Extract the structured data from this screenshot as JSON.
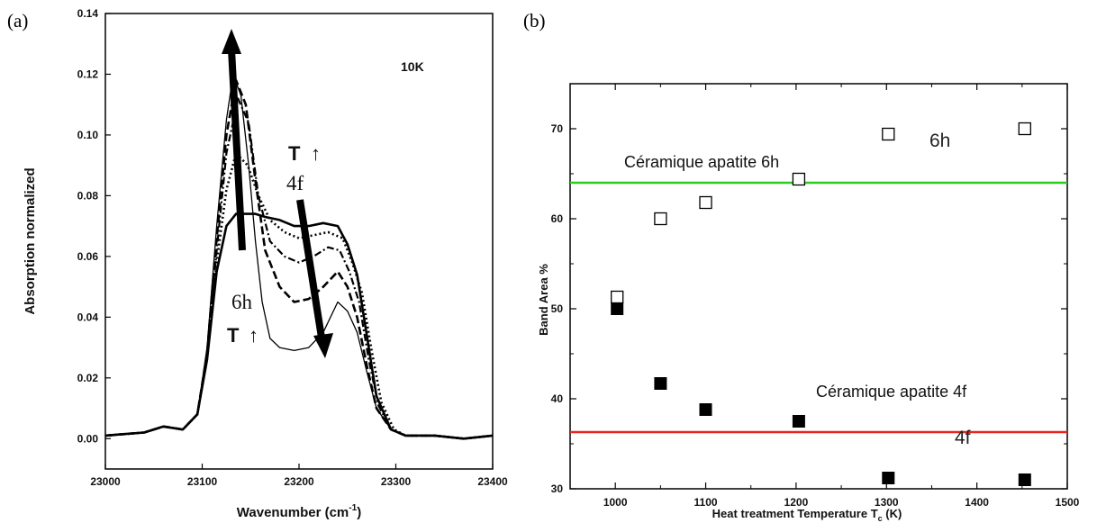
{
  "chart_data": [
    {
      "panel_label": "(a)",
      "type": "line",
      "title": "",
      "xlabel": "Wavenumber (cm",
      "xlabel_superscript": "-1",
      "xlabel_close": ")",
      "ylabel": "Absorption normalized",
      "xlim": [
        23000,
        23400
      ],
      "ylim": [
        -0.01,
        0.14
      ],
      "x_ticks": [
        {
          "value": 23000,
          "label": "23000"
        },
        {
          "value": 23100,
          "label": "23100"
        },
        {
          "value": 23200,
          "label": "23200"
        },
        {
          "value": 23300,
          "label": "23300"
        },
        {
          "value": 23400,
          "label": "23400"
        }
      ],
      "y_ticks": [
        {
          "value": 0.0,
          "label": "0.00"
        },
        {
          "value": 0.02,
          "label": "0.02"
        },
        {
          "value": 0.04,
          "label": "0.04"
        },
        {
          "value": 0.06,
          "label": "0.06"
        },
        {
          "value": 0.08,
          "label": "0.08"
        },
        {
          "value": 0.1,
          "label": "0.10"
        },
        {
          "value": 0.12,
          "label": "0.12"
        },
        {
          "value": 0.14,
          "label": "0.14"
        }
      ],
      "annotations": {
        "temperature": "10K",
        "t_arrow_upper": "T",
        "label_4f": "4f",
        "label_6h": "6h",
        "t_arrow_lower": "T",
        "up_arrow_glyph": "↑"
      },
      "series": [
        {
          "style": "solid-thin",
          "x": [
            23000,
            23040,
            23060,
            23080,
            23095,
            23105,
            23115,
            23125,
            23132,
            23140,
            23148,
            23155,
            23162,
            23170,
            23180,
            23195,
            23210,
            23225,
            23240,
            23250,
            23260,
            23270,
            23280,
            23295,
            23310,
            23340,
            23370,
            23400
          ],
          "y": [
            0.001,
            0.002,
            0.004,
            0.003,
            0.008,
            0.03,
            0.07,
            0.105,
            0.12,
            0.113,
            0.09,
            0.065,
            0.045,
            0.033,
            0.03,
            0.029,
            0.03,
            0.035,
            0.045,
            0.042,
            0.035,
            0.022,
            0.01,
            0.003,
            0.001,
            0.001,
            0.0,
            0.001
          ]
        },
        {
          "style": "dashed",
          "x": [
            23000,
            23040,
            23060,
            23080,
            23095,
            23105,
            23115,
            23125,
            23135,
            23145,
            23155,
            23165,
            23180,
            23195,
            23210,
            23225,
            23240,
            23250,
            23260,
            23270,
            23280,
            23295,
            23310,
            23340,
            23370,
            23400
          ],
          "y": [
            0.001,
            0.002,
            0.004,
            0.003,
            0.008,
            0.028,
            0.066,
            0.1,
            0.118,
            0.11,
            0.085,
            0.062,
            0.05,
            0.045,
            0.046,
            0.05,
            0.055,
            0.05,
            0.04,
            0.024,
            0.01,
            0.003,
            0.001,
            0.001,
            0.0,
            0.001
          ]
        },
        {
          "style": "dash-dot",
          "x": [
            23000,
            23040,
            23060,
            23080,
            23095,
            23105,
            23115,
            23125,
            23137,
            23148,
            23158,
            23170,
            23185,
            23200,
            23215,
            23230,
            23242,
            23252,
            23262,
            23272,
            23282,
            23295,
            23310,
            23340,
            23370,
            23400
          ],
          "y": [
            0.001,
            0.002,
            0.004,
            0.003,
            0.008,
            0.027,
            0.062,
            0.094,
            0.112,
            0.104,
            0.08,
            0.065,
            0.06,
            0.058,
            0.06,
            0.063,
            0.062,
            0.055,
            0.045,
            0.026,
            0.011,
            0.003,
            0.001,
            0.001,
            0.0,
            0.001
          ]
        },
        {
          "style": "dotted",
          "x": [
            23000,
            23040,
            23060,
            23080,
            23095,
            23105,
            23115,
            23125,
            23135,
            23147,
            23158,
            23170,
            23185,
            23200,
            23215,
            23230,
            23245,
            23255,
            23265,
            23275,
            23285,
            23298,
            23310,
            23340,
            23370,
            23400
          ],
          "y": [
            0.001,
            0.002,
            0.004,
            0.003,
            0.008,
            0.027,
            0.058,
            0.082,
            0.094,
            0.09,
            0.08,
            0.072,
            0.068,
            0.066,
            0.067,
            0.068,
            0.066,
            0.058,
            0.048,
            0.029,
            0.012,
            0.003,
            0.001,
            0.001,
            0.0,
            0.001
          ]
        },
        {
          "style": "solid-thick",
          "x": [
            23000,
            23040,
            23060,
            23080,
            23095,
            23105,
            23115,
            23125,
            23135,
            23145,
            23155,
            23165,
            23180,
            23195,
            23210,
            23225,
            23240,
            23250,
            23260,
            23270,
            23280,
            23295,
            23310,
            23340,
            23370,
            23400
          ],
          "y": [
            0.001,
            0.002,
            0.004,
            0.003,
            0.008,
            0.026,
            0.055,
            0.07,
            0.074,
            0.074,
            0.074,
            0.073,
            0.072,
            0.07,
            0.07,
            0.071,
            0.07,
            0.064,
            0.054,
            0.034,
            0.014,
            0.003,
            0.001,
            0.001,
            0.0,
            0.001
          ]
        }
      ]
    },
    {
      "panel_label": "(b)",
      "type": "scatter",
      "title": "",
      "xlabel": "Heat treatment Temperature T",
      "xlabel_subscript": "c",
      "xlabel_close": " (K)",
      "ylabel": "Band Area %",
      "xlim": [
        950,
        1500
      ],
      "ylim": [
        30,
        75
      ],
      "x_ticks": [
        {
          "value": 1000,
          "label": "1000"
        },
        {
          "value": 1100,
          "label": "1100"
        },
        {
          "value": 1200,
          "label": "1200"
        },
        {
          "value": 1300,
          "label": "1300"
        },
        {
          "value": 1400,
          "label": "1400"
        },
        {
          "value": 1500,
          "label": "1500"
        }
      ],
      "x_minor_ticks": [
        1050,
        1150,
        1250,
        1350,
        1450
      ],
      "y_ticks": [
        {
          "value": 30,
          "label": "30"
        },
        {
          "value": 40,
          "label": "40"
        },
        {
          "value": 50,
          "label": "50"
        },
        {
          "value": 60,
          "label": "60"
        },
        {
          "value": 70,
          "label": "70"
        }
      ],
      "y_minor_ticks": [
        35,
        45,
        55,
        65
      ],
      "series": [
        {
          "name": "6h",
          "marker": "open-square",
          "x": [
            1002,
            1050,
            1100,
            1203,
            1302,
            1453
          ],
          "y": [
            51.3,
            60.0,
            61.8,
            64.4,
            69.4,
            70.0
          ]
        },
        {
          "name": "4f",
          "marker": "filled-square",
          "x": [
            1002,
            1050,
            1100,
            1203,
            1302,
            1453
          ],
          "y": [
            50.0,
            41.7,
            38.8,
            37.5,
            31.2,
            31.0
          ]
        }
      ],
      "reference_lines": [
        {
          "label": "Céramique apatite 6h",
          "y": 64.0,
          "color": "#2ecc1f"
        },
        {
          "label": "Céramique apatite 4f",
          "y": 36.3,
          "color": "#e8251f"
        }
      ]
    }
  ]
}
